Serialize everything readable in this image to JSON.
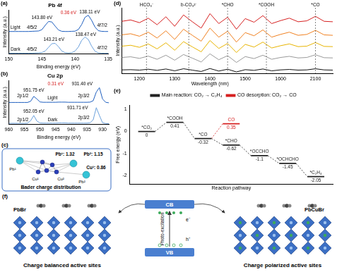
{
  "chart_data": [
    {
      "panel": "(a)",
      "type": "line",
      "title": "Pb 4f",
      "x_label": "Binding energy (eV)",
      "y_label": "Intensity (a.u.)",
      "x": [
        150,
        149.5,
        149,
        148.5,
        148,
        147.5,
        147,
        146.5,
        146,
        145.5,
        145,
        144.5,
        144,
        143.5,
        143,
        142.5,
        142,
        141.5,
        141,
        140.5,
        140,
        139.5,
        139,
        138.5,
        138,
        137.5,
        137,
        136.5,
        136,
        135.5,
        135
      ],
      "series": [
        {
          "color": "#1f5fbf",
          "values": [
            1.33,
            1.33,
            1.33,
            1.33,
            1.33,
            1.33,
            1.33,
            1.34,
            1.35,
            1.36,
            1.44,
            1.7,
            1.93,
            1.9,
            1.65,
            1.42,
            1.34,
            1.33,
            1.33,
            1.34,
            1.35,
            1.45,
            1.75,
            2.18,
            2.3,
            2.0,
            1.6,
            1.38,
            1.34,
            1.33,
            1.33
          ]
        },
        {
          "color": "#6aa0dc",
          "values": [
            0.03,
            0.03,
            0.03,
            0.03,
            0.03,
            0.03,
            0.03,
            0.03,
            0.04,
            0.05,
            0.07,
            0.16,
            0.38,
            0.6,
            0.62,
            0.42,
            0.16,
            0.06,
            0.04,
            0.06,
            0.16,
            0.4,
            0.8,
            1.0,
            0.85,
            0.45,
            0.15,
            0.05,
            0.03,
            0.03,
            0.03
          ]
        }
      ],
      "xlim": [
        150,
        135
      ],
      "xticks": [
        150,
        145,
        140,
        135
      ],
      "ylim": [
        0,
        2.6
      ],
      "tick_labels": "x",
      "annotations": [
        {
          "text": "Light",
          "x": 149,
          "y": 1.55
        },
        {
          "text": "Dark",
          "x": 149,
          "y": 0.25
        },
        {
          "text": "4f5/2",
          "x": 146.5,
          "y": 1.58
        },
        {
          "text": "4f7/2",
          "x": 135.9,
          "y": 1.7
        },
        {
          "text": "4f5/2",
          "x": 146.5,
          "y": 0.25
        },
        {
          "text": "4f7/2",
          "x": 135.9,
          "y": 0.35
        },
        {
          "text": "143.80 eV",
          "x": 145,
          "y": 2.15
        },
        {
          "text": "138.11 eV",
          "x": 137.8,
          "y": 2.48
        },
        {
          "text": "143.21 eV",
          "x": 143.2,
          "y": 0.85
        },
        {
          "text": "138.47 eV",
          "x": 138.4,
          "y": 1.16
        },
        {
          "text": "0.36 eV",
          "x": 141,
          "y": 2.45,
          "color": "#d62020"
        }
      ]
    },
    {
      "panel": "(b)",
      "type": "line",
      "title": "Cu 2p",
      "x_label": "Binding energy (eV)",
      "y_label": "Intensity (a.u.)",
      "x": [
        960,
        959,
        958,
        957,
        956,
        955,
        954,
        953,
        952,
        951,
        950,
        949,
        948,
        947,
        946,
        945,
        944,
        943,
        942,
        941,
        940,
        939,
        938,
        937,
        936,
        935,
        934,
        933,
        932,
        931,
        930,
        929,
        928
      ],
      "series": [
        {
          "color": "#1f5fbf",
          "values": [
            1.25,
            1.25,
            1.25,
            1.25,
            1.25,
            1.25,
            1.25,
            1.32,
            1.6,
            1.45,
            1.28,
            1.26,
            1.26,
            1.26,
            1.26,
            1.26,
            1.27,
            1.27,
            1.27,
            1.26,
            1.26,
            1.26,
            1.26,
            1.26,
            1.26,
            1.26,
            1.27,
            1.35,
            1.85,
            2.1,
            1.45,
            1.26,
            1.23
          ]
        },
        {
          "color": "#6aa0dc",
          "values": [
            0.05,
            0.05,
            0.05,
            0.05,
            0.05,
            0.05,
            0.06,
            0.2,
            0.5,
            0.18,
            0.07,
            0.06,
            0.06,
            0.06,
            0.06,
            0.06,
            0.07,
            0.07,
            0.07,
            0.06,
            0.06,
            0.06,
            0.06,
            0.06,
            0.06,
            0.06,
            0.08,
            0.25,
            0.95,
            0.5,
            0.08,
            0.04,
            0.03
          ]
        }
      ],
      "xlim": [
        960,
        928
      ],
      "xticks": [
        960,
        955,
        950,
        945,
        940,
        935,
        930
      ],
      "ylim": [
        0,
        2.5
      ],
      "tick_labels": "x",
      "annotations": [
        {
          "text": "Light",
          "x": 946,
          "y": 1.5
        },
        {
          "text": "Dark",
          "x": 946,
          "y": 0.25
        },
        {
          "text": "2p1/2",
          "x": 955.5,
          "y": 1.62
        },
        {
          "text": "2p3/2",
          "x": 936,
          "y": 1.62
        },
        {
          "text": "2p1/2",
          "x": 955.5,
          "y": 0.25
        },
        {
          "text": "2p3/2",
          "x": 936,
          "y": 0.35
        },
        {
          "text": "951.75 eV",
          "x": 952,
          "y": 1.95
        },
        {
          "text": "931.40 eV",
          "x": 936.5,
          "y": 2.3
        },
        {
          "text": "952.05 eV",
          "x": 952,
          "y": 0.75
        },
        {
          "text": "931.71 eV",
          "x": 938,
          "y": 0.95
        },
        {
          "text": "0.31 eV",
          "x": 945,
          "y": 2.3,
          "color": "#d62020"
        }
      ]
    },
    {
      "panel": "(d)",
      "type": "line",
      "x_label": "Wavelength (nm)",
      "y_label": "Intensity (a.u.)",
      "x": [
        1150,
        1175,
        1200,
        1225,
        1250,
        1275,
        1300,
        1325,
        1350,
        1375,
        1400,
        1425,
        1450,
        1475,
        1500,
        1525,
        1550,
        1575,
        1600,
        1625,
        1650
      ],
      "series": [
        {
          "color": "#111111",
          "values": [
            0.15,
            0.16,
            0.14,
            0.18,
            0.13,
            0.19,
            0.11,
            0.2,
            0.14,
            0.08,
            0.21,
            0.1,
            0.18,
            0.06,
            0.16,
            0.13,
            0.19,
            0.11,
            0.15,
            0.17,
            0.14
          ]
        },
        {
          "color": "#999999",
          "values": [
            0.7,
            0.73,
            0.66,
            0.76,
            0.62,
            0.8,
            0.58,
            0.83,
            0.67,
            0.5,
            0.86,
            0.6,
            0.78,
            0.48,
            0.74,
            0.65,
            0.8,
            0.62,
            0.7,
            0.75,
            0.68
          ]
        },
        {
          "color": "#e8b400",
          "values": [
            1.2,
            1.24,
            1.15,
            1.3,
            1.08,
            1.35,
            1.02,
            1.4,
            1.17,
            0.95,
            1.45,
            1.1,
            1.32,
            0.92,
            1.28,
            1.16,
            1.38,
            1.12,
            1.22,
            1.3,
            1.18
          ]
        },
        {
          "color": "#f08020",
          "values": [
            1.7,
            1.75,
            1.64,
            1.82,
            1.56,
            1.88,
            1.5,
            1.95,
            1.68,
            1.42,
            2.0,
            1.6,
            1.86,
            1.38,
            1.8,
            1.66,
            1.92,
            1.6,
            1.72,
            1.82,
            1.68
          ]
        },
        {
          "color": "#d62020",
          "values": [
            2.3,
            2.36,
            2.24,
            2.44,
            2.15,
            2.5,
            2.08,
            2.58,
            2.28,
            2.0,
            2.64,
            2.2,
            2.48,
            1.95,
            2.42,
            2.26,
            2.55,
            2.2,
            2.33,
            2.44,
            2.28
          ]
        }
      ],
      "xlim": [
        1150,
        1650
      ],
      "xticks": [
        1200,
        1300,
        1400,
        1500,
        1600
      ],
      "ylim": [
        0,
        2.9
      ],
      "tick_labels": "x",
      "annotations": [
        {
          "text": "HCO₃⁻",
          "x": 1220
        },
        {
          "text": "b-CO₃²⁻",
          "x": 1340
        },
        {
          "text": "*CHO",
          "x": 1450
        },
        {
          "text": "*COOH",
          "x": 1560
        }
      ]
    },
    {
      "type": "line",
      "x": [
        2050,
        2075,
        2100,
        2125,
        2150
      ],
      "series": [
        {
          "color": "#111111",
          "values": [
            0.14,
            0.15,
            0.2,
            0.15,
            0.14
          ]
        },
        {
          "color": "#999999",
          "values": [
            0.68,
            0.7,
            0.82,
            0.69,
            0.68
          ]
        },
        {
          "color": "#e8b400",
          "values": [
            1.18,
            1.2,
            1.36,
            1.19,
            1.18
          ]
        },
        {
          "color": "#f08020",
          "values": [
            1.68,
            1.72,
            1.9,
            1.7,
            1.68
          ]
        },
        {
          "color": "#d62020",
          "values": [
            2.28,
            2.32,
            2.52,
            2.3,
            2.28
          ]
        }
      ],
      "xlim": [
        2050,
        2150
      ],
      "xticks": [
        2100
      ],
      "ylim": [
        0,
        2.9
      ],
      "tick_labels": "x",
      "annotations": [
        {
          "text": "*CO",
          "x": 2100
        }
      ]
    },
    {
      "panel": "(e)",
      "type": "line",
      "x_label": "Reaction pathway",
      "y_label": "Free energy (eV)",
      "xlim": [
        0.4,
        7.6
      ],
      "ylim": [
        -2.4,
        1.2
      ],
      "yticks": [
        -2,
        -1,
        0,
        1
      ],
      "tick_labels": "y",
      "legend": "top",
      "data_labels": true,
      "series": [
        {
          "name": "Main reaction: CO₂ → C₂H₄",
          "color": "#222222",
          "x": [
            1,
            2,
            3,
            4,
            5,
            6,
            7
          ],
          "values": [
            0,
            0.41,
            -0.32,
            -0.62,
            -1.1,
            -1.45,
            -2.05
          ],
          "steps": [
            "*CO₂",
            "*COOH",
            "*CO",
            "*CHO",
            "*OCCHO",
            "*OCHCHO",
            "*C₂H₄"
          ]
        },
        {
          "name": "CO desorption: CO₂ → CO",
          "color": "#d62020",
          "x": [
            4
          ],
          "values": [
            0.35
          ],
          "steps": [
            "CO"
          ]
        }
      ]
    }
  ],
  "panels": {
    "c": {
      "panel": "(c)",
      "caption": "Bader charge distribution",
      "charges": [
        "Pb¹: 1.32",
        "Pb²: 1.15",
        "Cu¹: 0.86"
      ],
      "atom_labels": [
        "Pb¹",
        "Cu¹",
        "Cu²",
        "Pb²"
      ]
    },
    "f": {
      "panel": "(f)",
      "left": {
        "label": "PbBr",
        "caption": "Charge balanced active sites"
      },
      "right": {
        "label": "PbCuBr",
        "caption": "Charge polarized active sites"
      },
      "band": {
        "cb": "CB",
        "vb": "VB",
        "process": "Photo-excitation",
        "electron": "e⁻",
        "hole": "h⁺"
      }
    }
  }
}
